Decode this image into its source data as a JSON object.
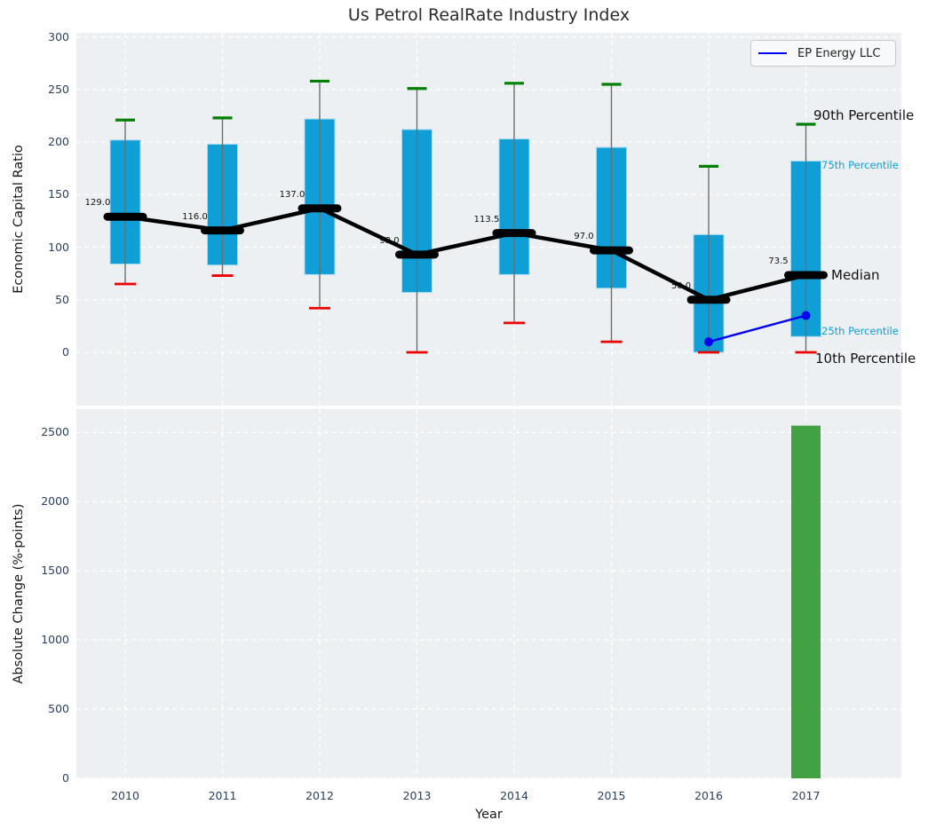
{
  "colors": {
    "plot_bg": "#edf0f2",
    "grid": "#ffffff",
    "box_fill": "#0f9ed5",
    "box_edge": "#a8daf0",
    "whisker": "#6e6e6e",
    "cap_90th": "#008000",
    "cap_10th": "#ee0000",
    "median_line": "#000000",
    "company_line": "#0000ee",
    "bar": "#42a142",
    "tick_label": "#2a3f5f",
    "annotation_secondary": "#0f9ed5",
    "text": "#161616"
  },
  "chart_data": [
    {
      "type": "boxplot-percentiles",
      "title": "Us Petrol RealRate Industry Index",
      "ylabel": "Economic Capital Ratio",
      "ylim": [
        -51,
        304
      ],
      "yticks": [
        0,
        50,
        100,
        150,
        200,
        250,
        300
      ],
      "grid": "white dashed, horizontal and vertical",
      "categories": [
        "2010",
        "2011",
        "2012",
        "2013",
        "2014",
        "2015",
        "2016",
        "2017"
      ],
      "series": [
        {
          "name": "90th Percentile",
          "values": [
            221,
            223,
            258,
            251,
            256,
            255,
            177,
            217
          ]
        },
        {
          "name": "75th Percentile",
          "values": [
            202,
            198,
            222,
            212,
            203,
            195,
            112,
            182
          ]
        },
        {
          "name": "Median",
          "values": [
            129.0,
            116.0,
            137.0,
            93.0,
            113.5,
            97.0,
            50.0,
            73.5
          ]
        },
        {
          "name": "25th Percentile",
          "values": [
            84,
            83,
            74,
            57,
            74,
            61,
            0,
            15
          ]
        },
        {
          "name": "10th Percentile",
          "values": [
            65,
            73,
            42,
            0,
            28,
            10,
            0,
            0
          ]
        }
      ],
      "median_labels": [
        "129.0",
        "116.0",
        "137.0",
        "93.0",
        "113.5",
        "97.0",
        "50.0",
        "73.5"
      ],
      "company": {
        "name": "EP Energy LLC",
        "x": [
          "2016",
          "2017"
        ],
        "y": [
          10,
          35
        ]
      },
      "annotations": [
        {
          "label": "90th Percentile",
          "style": "primary"
        },
        {
          "label": "75th Percentile",
          "style": "secondary"
        },
        {
          "label": "Median",
          "style": "primary"
        },
        {
          "label": "25th Percentile",
          "style": "secondary"
        },
        {
          "label": "10th Percentile",
          "style": "primary"
        }
      ],
      "legend": {
        "position": "upper right",
        "entries": [
          "EP Energy LLC"
        ]
      }
    },
    {
      "type": "bar",
      "xlabel": "Year",
      "ylabel": "Absolute Change (%-points)",
      "ylim": [
        0,
        2670
      ],
      "yticks": [
        0,
        500,
        1000,
        1500,
        2000,
        2500
      ],
      "grid": "white dashed, horizontal and vertical",
      "categories": [
        "2010",
        "2011",
        "2012",
        "2013",
        "2014",
        "2015",
        "2016",
        "2017"
      ],
      "values": [
        0,
        0,
        0,
        0,
        0,
        0,
        0,
        2550
      ]
    }
  ]
}
